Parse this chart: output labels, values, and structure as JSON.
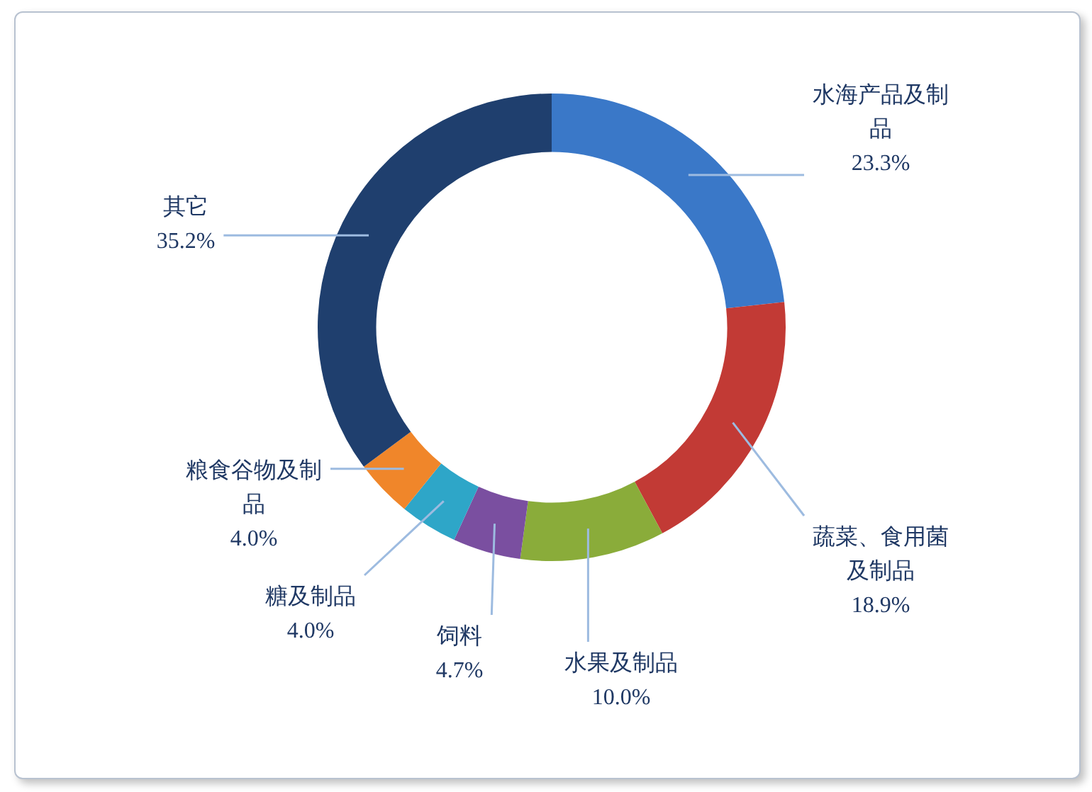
{
  "chart_data": {
    "type": "donut",
    "categories": [
      "水海产品及制品",
      "蔬菜、食用菌及制品",
      "水果及制品",
      "饲料",
      "糖及制品",
      "粮食谷物及制品",
      "其它"
    ],
    "values": [
      23.3,
      18.9,
      10.0,
      4.7,
      4.0,
      4.0,
      35.2
    ],
    "value_labels": [
      "23.3%",
      "18.9%",
      "10.0%",
      "4.7%",
      "4.0%",
      "4.0%",
      "35.2%"
    ],
    "colors": [
      "#3a78c8",
      "#c23a35",
      "#8aac3a",
      "#7a4fa0",
      "#2ea6c8",
      "#f0862a",
      "#1f3f6e"
    ]
  }
}
